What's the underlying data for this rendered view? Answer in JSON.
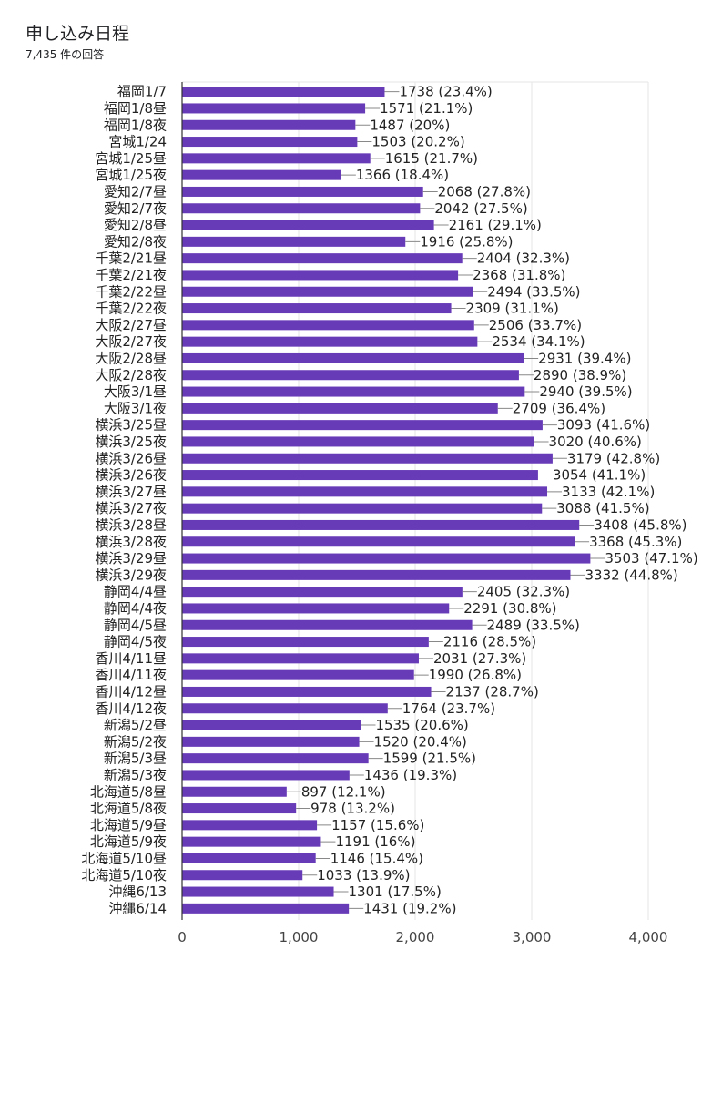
{
  "header": {
    "title": "申し込み日程",
    "subtitle": "7,435 件の回答"
  },
  "colors": {
    "bar": "#673ab7",
    "grid": "#e6e6e6",
    "axis": "#333333",
    "connector": "#888888"
  },
  "chart_data": {
    "type": "bar",
    "orientation": "horizontal",
    "title": "申し込み日程",
    "subtitle": "7,435 件の回答",
    "xlabel": "",
    "ylabel": "",
    "xlim": [
      0,
      4000
    ],
    "xticks": [
      0,
      1000,
      2000,
      3000,
      4000
    ],
    "xtick_labels": [
      "0",
      "1,000",
      "2,000",
      "3,000",
      "4,000"
    ],
    "grid": true,
    "categories": [
      "福岡1/7",
      "福岡1/8昼",
      "福岡1/8夜",
      "宮城1/24",
      "宮城1/25昼",
      "宮城1/25夜",
      "愛知2/7昼",
      "愛知2/7夜",
      "愛知2/8昼",
      "愛知2/8夜",
      "千葉2/21昼",
      "千葉2/21夜",
      "千葉2/22昼",
      "千葉2/22夜",
      "大阪2/27昼",
      "大阪2/27夜",
      "大阪2/28昼",
      "大阪2/28夜",
      "大阪3/1昼",
      "大阪3/1夜",
      "横浜3/25昼",
      "横浜3/25夜",
      "横浜3/26昼",
      "横浜3/26夜",
      "横浜3/27昼",
      "横浜3/27夜",
      "横浜3/28昼",
      "横浜3/28夜",
      "横浜3/29昼",
      "横浜3/29夜",
      "静岡4/4昼",
      "静岡4/4夜",
      "静岡4/5昼",
      "静岡4/5夜",
      "香川4/11昼",
      "香川4/11夜",
      "香川4/12昼",
      "香川4/12夜",
      "新潟5/2昼",
      "新潟5/2夜",
      "新潟5/3昼",
      "新潟5/3夜",
      "北海道5/8昼",
      "北海道5/8夜",
      "北海道5/9昼",
      "北海道5/9夜",
      "北海道5/10昼",
      "北海道5/10夜",
      "沖縄6/13",
      "沖縄6/14"
    ],
    "values": [
      1738,
      1571,
      1487,
      1503,
      1615,
      1366,
      2068,
      2042,
      2161,
      1916,
      2404,
      2368,
      2494,
      2309,
      2506,
      2534,
      2931,
      2890,
      2940,
      2709,
      3093,
      3020,
      3179,
      3054,
      3133,
      3088,
      3408,
      3368,
      3503,
      3332,
      2405,
      2291,
      2489,
      2116,
      2031,
      1990,
      2137,
      1764,
      1535,
      1520,
      1599,
      1436,
      897,
      978,
      1157,
      1191,
      1146,
      1033,
      1301,
      1431
    ],
    "percent_labels": [
      "23.4%",
      "21.1%",
      "20%",
      "20.2%",
      "21.7%",
      "18.4%",
      "27.8%",
      "27.5%",
      "29.1%",
      "25.8%",
      "32.3%",
      "31.8%",
      "33.5%",
      "31.1%",
      "33.7%",
      "34.1%",
      "39.4%",
      "38.9%",
      "39.5%",
      "36.4%",
      "41.6%",
      "40.6%",
      "42.8%",
      "41.1%",
      "42.1%",
      "41.5%",
      "45.8%",
      "45.3%",
      "47.1%",
      "44.8%",
      "32.3%",
      "30.8%",
      "33.5%",
      "28.5%",
      "27.3%",
      "26.8%",
      "28.7%",
      "23.7%",
      "20.6%",
      "20.4%",
      "21.5%",
      "19.3%",
      "12.1%",
      "13.2%",
      "15.6%",
      "16%",
      "15.4%",
      "13.9%",
      "17.5%",
      "19.2%"
    ]
  }
}
